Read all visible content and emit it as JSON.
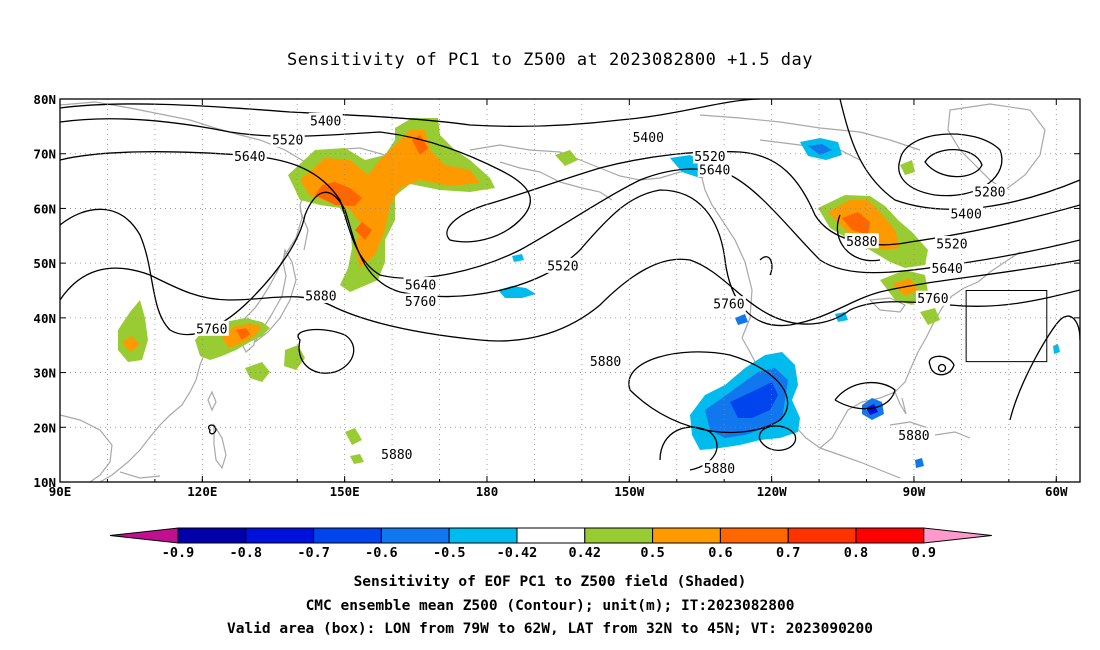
{
  "title": "Sensitivity of PC1 to Z500 at 2023082800 +1.5 day",
  "map": {
    "lon_range": [
      90,
      305
    ],
    "lat_range": [
      10,
      80
    ],
    "x_ticks": [
      {
        "lon": 90,
        "label": "90E"
      },
      {
        "lon": 120,
        "label": "120E"
      },
      {
        "lon": 150,
        "label": "150E"
      },
      {
        "lon": 180,
        "label": "180"
      },
      {
        "lon": 210,
        "label": "150W"
      },
      {
        "lon": 240,
        "label": "120W"
      },
      {
        "lon": 270,
        "label": "90W"
      },
      {
        "lon": 300,
        "label": "60W"
      }
    ],
    "y_ticks": [
      {
        "lat": 10,
        "label": "10N"
      },
      {
        "lat": 20,
        "label": "20N"
      },
      {
        "lat": 30,
        "label": "30N"
      },
      {
        "lat": 40,
        "label": "40N"
      },
      {
        "lat": 50,
        "label": "50N"
      },
      {
        "lat": 60,
        "label": "60N"
      },
      {
        "lat": 70,
        "label": "70N"
      },
      {
        "lat": 80,
        "label": "80N"
      }
    ],
    "grid": true,
    "valid_box": {
      "lon_min": 281,
      "lon_max": 298,
      "lat_min": 32,
      "lat_max": 45
    },
    "contour_labels": [
      {
        "text": "5400",
        "lon": 146,
        "lat": 76
      },
      {
        "text": "5400",
        "lon": 214,
        "lat": 73
      },
      {
        "text": "5520",
        "lon": 138,
        "lat": 72.5
      },
      {
        "text": "5640",
        "lon": 130,
        "lat": 69.5
      },
      {
        "text": "5520",
        "lon": 227,
        "lat": 69.5
      },
      {
        "text": "5640",
        "lon": 228,
        "lat": 67
      },
      {
        "text": "5280",
        "lon": 286,
        "lat": 63
      },
      {
        "text": "5400",
        "lon": 281,
        "lat": 59
      },
      {
        "text": "5880",
        "lon": 259,
        "lat": 54
      },
      {
        "text": "5520",
        "lon": 278,
        "lat": 53.5
      },
      {
        "text": "5520",
        "lon": 196,
        "lat": 49.5
      },
      {
        "text": "5640",
        "lon": 277,
        "lat": 49
      },
      {
        "text": "5880",
        "lon": 145,
        "lat": 44
      },
      {
        "text": "5640",
        "lon": 166,
        "lat": 46
      },
      {
        "text": "5760",
        "lon": 166,
        "lat": 43
      },
      {
        "text": "5760",
        "lon": 231,
        "lat": 42.5
      },
      {
        "text": "5760",
        "lon": 274,
        "lat": 43.5
      },
      {
        "text": "5760",
        "lon": 122,
        "lat": 38
      },
      {
        "text": "5880",
        "lon": 205,
        "lat": 32
      },
      {
        "text": "5880",
        "lon": 270,
        "lat": 18.5
      },
      {
        "text": "5880",
        "lon": 161,
        "lat": 15
      },
      {
        "text": "5880",
        "lon": 229,
        "lat": 12.5
      }
    ]
  },
  "colorbar": {
    "labels": [
      "-0.9",
      "-0.8",
      "-0.7",
      "-0.6",
      "-0.5",
      "-0.42",
      "0.42",
      "0.5",
      "0.6",
      "0.7",
      "0.8",
      "0.9"
    ],
    "colors": [
      "#c0108f",
      "#0000aa",
      "#0011dd",
      "#0044ee",
      "#1177ee",
      "#00bbee",
      "#ffffff",
      "#99cc33",
      "#ff9900",
      "#ff6600",
      "#ff3300",
      "#ff0000",
      "#ff99cc"
    ]
  },
  "captions": {
    "line1": "Sensitivity of EOF PC1 to Z500 field (Shaded)",
    "line2": "CMC ensemble mean Z500 (Contour); unit(m); IT:2023082800",
    "line3": "Valid area (box): LON from 79W to 62W, LAT from 32N to 45N; VT: 2023090200"
  }
}
